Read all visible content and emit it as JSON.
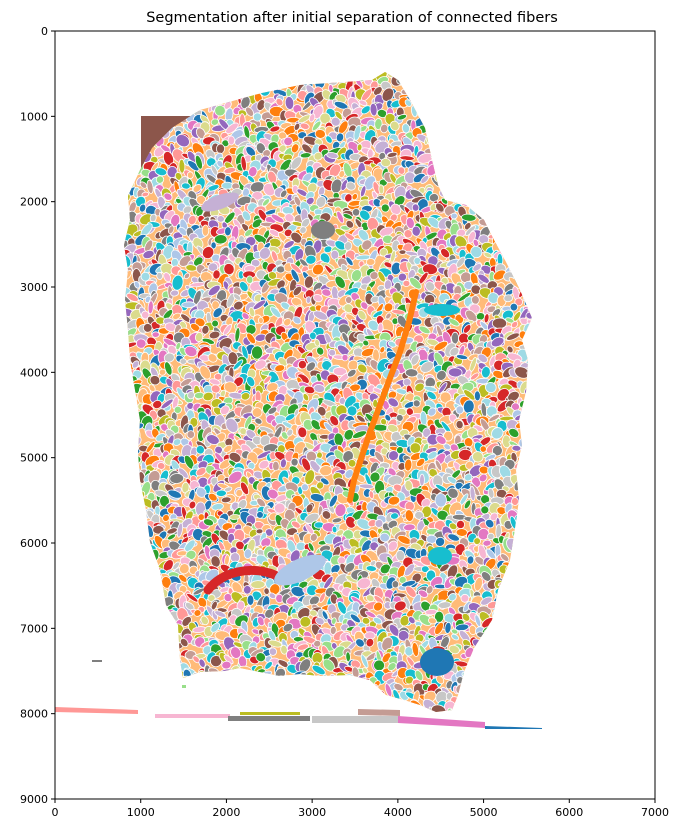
{
  "figure": {
    "title": "Segmentation after initial separation of connected fibers",
    "axes": {
      "x_ticks": [
        "0",
        "1000",
        "2000",
        "3000",
        "4000",
        "5000",
        "6000",
        "7000"
      ],
      "y_ticks": [
        "0",
        "1000",
        "2000",
        "3000",
        "4000",
        "5000",
        "6000",
        "7000",
        "8000",
        "9000"
      ]
    },
    "image": {
      "type": "segmentation label map",
      "palette": [
        "#1f77b4",
        "#ff7f0e",
        "#2ca02c",
        "#d62728",
        "#9467bd",
        "#8c564b",
        "#e377c2",
        "#7f7f7f",
        "#bcbd22",
        "#17becf",
        "#aec7e8",
        "#ffbb78",
        "#98df8a",
        "#ff9896",
        "#c5b0d5",
        "#c49c94",
        "#f7b6d2",
        "#c7c7c7",
        "#dbdb8d",
        "#9edae5"
      ]
    }
  }
}
